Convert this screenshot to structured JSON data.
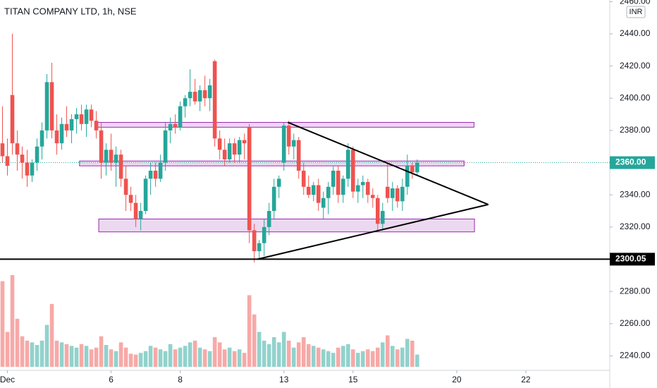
{
  "chart_data": {
    "type": "candlestick",
    "title": "TITAN COMPANY LTD, 1h, NSE",
    "currency": "INR",
    "up_color": "#26a69a",
    "down_color": "#ef5350",
    "x": [
      0,
      1,
      2,
      3,
      4,
      5,
      6,
      7,
      8,
      9,
      10,
      11,
      12,
      13,
      14,
      15,
      16,
      17,
      18,
      19,
      20,
      21,
      22,
      23,
      24,
      25,
      26,
      27,
      28,
      29,
      30,
      31,
      32,
      33,
      34,
      35,
      36,
      37,
      38,
      39,
      40,
      41,
      42,
      43,
      44,
      45,
      46,
      47,
      48,
      49,
      50,
      51,
      52,
      53,
      54,
      55,
      56,
      57,
      58,
      59,
      60,
      61,
      62,
      63,
      64,
      65,
      66,
      67,
      68,
      69,
      70,
      71,
      72,
      73,
      74,
      75,
      76,
      77,
      78,
      79,
      80,
      81,
      82,
      83,
      84
    ],
    "open": [
      2372,
      2364,
      2402,
      2372,
      2365,
      2360,
      2352,
      2360,
      2370,
      2380,
      2410,
      2380,
      2372,
      2384,
      2380,
      2387,
      2390,
      2384,
      2393,
      2386,
      2380,
      2360,
      2368,
      2360,
      2365,
      2350,
      2340,
      2335,
      2325,
      2330,
      2350,
      2355,
      2350,
      2360,
      2380,
      2384,
      2382,
      2395,
      2400,
      2404,
      2398,
      2405,
      2400,
      2423,
      2375,
      2368,
      2362,
      2372,
      2365,
      2374,
      2382,
      2318,
      2305,
      2310,
      2320,
      2330,
      2345,
      2360,
      2383,
      2370,
      2374,
      2355,
      2345,
      2340,
      2346,
      2332,
      2338,
      2345,
      2355,
      2340,
      2350,
      2368,
      2342,
      2346,
      2348,
      2340,
      2338,
      2322,
      2345,
      2338,
      2344,
      2336,
      2345,
      2358,
      2354
    ],
    "high": [
      2395,
      2375,
      2440,
      2380,
      2370,
      2368,
      2362,
      2375,
      2385,
      2415,
      2422,
      2390,
      2388,
      2395,
      2390,
      2394,
      2396,
      2396,
      2396,
      2392,
      2385,
      2372,
      2378,
      2370,
      2368,
      2358,
      2345,
      2340,
      2335,
      2352,
      2360,
      2360,
      2365,
      2385,
      2388,
      2390,
      2398,
      2402,
      2418,
      2412,
      2408,
      2414,
      2412,
      2424,
      2380,
      2375,
      2375,
      2375,
      2376,
      2378,
      2384,
      2322,
      2312,
      2325,
      2335,
      2350,
      2352,
      2385,
      2386,
      2378,
      2376,
      2360,
      2352,
      2348,
      2350,
      2342,
      2348,
      2358,
      2358,
      2352,
      2372,
      2370,
      2350,
      2352,
      2350,
      2344,
      2340,
      2335,
      2360,
      2348,
      2346,
      2350,
      2365,
      2360,
      2362
    ],
    "low": [
      2360,
      2352,
      2365,
      2355,
      2350,
      2345,
      2348,
      2355,
      2362,
      2375,
      2375,
      2365,
      2368,
      2376,
      2372,
      2378,
      2380,
      2376,
      2382,
      2375,
      2350,
      2352,
      2355,
      2345,
      2345,
      2330,
      2330,
      2320,
      2318,
      2328,
      2340,
      2345,
      2348,
      2355,
      2372,
      2378,
      2380,
      2388,
      2395,
      2396,
      2392,
      2395,
      2392,
      2370,
      2362,
      2358,
      2360,
      2360,
      2360,
      2362,
      2310,
      2298,
      2300,
      2302,
      2315,
      2325,
      2338,
      2355,
      2365,
      2362,
      2350,
      2340,
      2338,
      2336,
      2330,
      2325,
      2328,
      2340,
      2335,
      2335,
      2345,
      2338,
      2335,
      2338,
      2335,
      2332,
      2318,
      2318,
      2335,
      2330,
      2332,
      2330,
      2340,
      2350,
      2352
    ],
    "close": [
      2364,
      2358,
      2372,
      2365,
      2360,
      2352,
      2360,
      2370,
      2380,
      2410,
      2380,
      2372,
      2384,
      2380,
      2387,
      2390,
      2384,
      2393,
      2386,
      2380,
      2360,
      2368,
      2360,
      2365,
      2350,
      2340,
      2335,
      2325,
      2330,
      2350,
      2355,
      2350,
      2360,
      2380,
      2384,
      2382,
      2395,
      2400,
      2404,
      2398,
      2405,
      2400,
      2408,
      2375,
      2368,
      2362,
      2372,
      2365,
      2374,
      2372,
      2318,
      2305,
      2310,
      2320,
      2330,
      2345,
      2350,
      2383,
      2370,
      2374,
      2355,
      2345,
      2340,
      2346,
      2335,
      2338,
      2345,
      2355,
      2340,
      2350,
      2368,
      2342,
      2346,
      2348,
      2340,
      2338,
      2322,
      2330,
      2338,
      2344,
      2336,
      2345,
      2358,
      2354,
      2360
    ],
    "volume": [
      98,
      40,
      105,
      55,
      35,
      30,
      28,
      25,
      30,
      48,
      72,
      30,
      28,
      26,
      24,
      22,
      26,
      24,
      20,
      22,
      35,
      25,
      20,
      18,
      28,
      22,
      15,
      14,
      16,
      18,
      24,
      22,
      20,
      18,
      26,
      20,
      22,
      24,
      28,
      30,
      22,
      20,
      18,
      34,
      28,
      20,
      22,
      18,
      20,
      16,
      82,
      60,
      40,
      30,
      26,
      34,
      28,
      40,
      30,
      22,
      28,
      34,
      26,
      24,
      22,
      20,
      18,
      16,
      22,
      24,
      26,
      20,
      16,
      18,
      20,
      18,
      22,
      28,
      36,
      24,
      20,
      22,
      32,
      30,
      14
    ],
    "xlim": [
      -0.5,
      123
    ],
    "ylim": [
      2231,
      2461
    ],
    "yticks": [
      {
        "value": 2240,
        "label": "2240.00"
      },
      {
        "value": 2260,
        "label": "2260.00"
      },
      {
        "value": 2280,
        "label": "2280.00"
      },
      {
        "value": 2320,
        "label": "2320.00"
      },
      {
        "value": 2340,
        "label": "2340.00"
      },
      {
        "value": 2380,
        "label": "2380.00"
      },
      {
        "value": 2400,
        "label": "2400.00"
      },
      {
        "value": 2420,
        "label": "2420.00"
      },
      {
        "value": 2440,
        "label": "2440.00"
      },
      {
        "value": 2460,
        "label": "2460.00"
      }
    ],
    "xticks": [
      {
        "value": 1,
        "label": "Dec"
      },
      {
        "value": 22,
        "label": "6"
      },
      {
        "value": 36,
        "label": "8"
      },
      {
        "value": 57,
        "label": "13"
      },
      {
        "value": 71,
        "label": "15"
      },
      {
        "value": 92,
        "label": "20"
      },
      {
        "value": 106,
        "label": "22"
      }
    ],
    "last_price": {
      "value": 2360,
      "label": "2360.00"
    },
    "support_line": {
      "value": 2300.05,
      "label": "2300.05"
    },
    "zones": [
      {
        "x": [
          18.8,
          95.5
        ],
        "y": [
          2382,
          2385
        ]
      },
      {
        "x": [
          15.6,
          93.5
        ],
        "y": [
          2358,
          2361
        ]
      },
      {
        "x": [
          19.5,
          95.6
        ],
        "y": [
          2317,
          2325
        ]
      }
    ],
    "triangle": {
      "x": [
        51.6,
        57.8,
        98.4
      ],
      "y": [
        2300,
        2385,
        2334
      ]
    }
  }
}
